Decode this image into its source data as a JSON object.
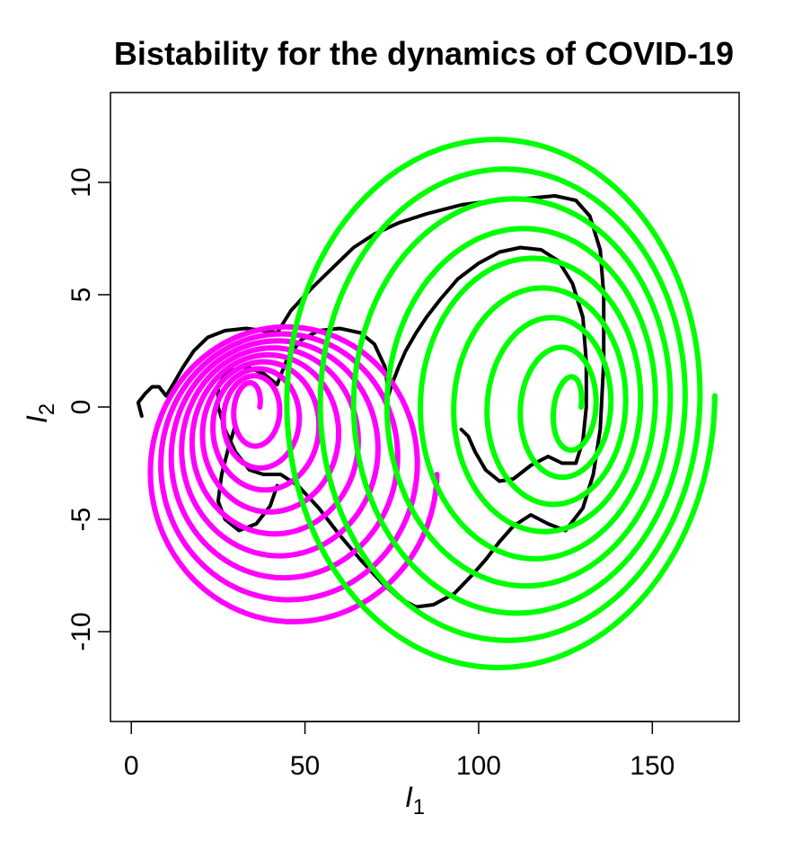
{
  "chart_data": {
    "type": "line",
    "title": "Bistability for the dynamics of COVID-19",
    "xlabel": {
      "symbol": "I",
      "subscript": "1"
    },
    "ylabel": {
      "symbol": "I",
      "subscript": "2"
    },
    "xlim": [
      -6,
      175
    ],
    "ylim": [
      -14,
      14
    ],
    "x_ticks": [
      0,
      50,
      100,
      150
    ],
    "y_ticks": [
      -10,
      -5,
      0,
      5,
      10
    ],
    "grid": false,
    "legend": "none",
    "series": [
      {
        "color": "#000000",
        "points": [
          [
            3,
            -0.4
          ],
          [
            2,
            0.2
          ],
          [
            4,
            0.6
          ],
          [
            6,
            0.9
          ],
          [
            8,
            0.9
          ],
          [
            10,
            0.5
          ],
          [
            12,
            1.0
          ],
          [
            15,
            1.8
          ],
          [
            18,
            2.5
          ],
          [
            22,
            3.1
          ],
          [
            27,
            3.4
          ],
          [
            33,
            3.5
          ],
          [
            38,
            3.4
          ],
          [
            42,
            3.3
          ],
          [
            46,
            4.3
          ],
          [
            52,
            5.3
          ],
          [
            58,
            6.2
          ],
          [
            64,
            7.1
          ],
          [
            70,
            7.7
          ],
          [
            77,
            8.2
          ],
          [
            85,
            8.6
          ],
          [
            95,
            9.0
          ],
          [
            105,
            9.2
          ],
          [
            115,
            9.3
          ],
          [
            122,
            9.4
          ],
          [
            128,
            9.2
          ],
          [
            132,
            8.5
          ],
          [
            135,
            7.0
          ],
          [
            136,
            5.0
          ],
          [
            136,
            2.0
          ],
          [
            135,
            -1.0
          ],
          [
            133,
            -3.0
          ],
          [
            130,
            -4.5
          ],
          [
            125,
            -5.5
          ],
          [
            120,
            -5.2
          ],
          [
            115,
            -4.8
          ],
          [
            110,
            -5.3
          ],
          [
            106,
            -6.0
          ],
          [
            102,
            -6.8
          ],
          [
            98,
            -7.5
          ],
          [
            93,
            -8.3
          ],
          [
            87,
            -8.8
          ],
          [
            82,
            -8.9
          ],
          [
            77,
            -8.5
          ],
          [
            72,
            -7.8
          ],
          [
            66,
            -6.8
          ],
          [
            60,
            -5.7
          ],
          [
            54,
            -4.5
          ],
          [
            48,
            -3.5
          ],
          [
            43,
            -3.0
          ],
          [
            38,
            -3.0
          ],
          [
            34,
            -2.8
          ],
          [
            30,
            -2.0
          ],
          [
            27,
            -1.0
          ],
          [
            25,
            0.0
          ],
          [
            25,
            1.0
          ],
          [
            28,
            1.6
          ],
          [
            33,
            1.8
          ],
          [
            38,
            1.5
          ],
          [
            42,
            1.0
          ],
          [
            45,
            2.2
          ],
          [
            49,
            3.0
          ],
          [
            54,
            3.4
          ],
          [
            60,
            3.5
          ],
          [
            66,
            3.3
          ],
          [
            70,
            2.8
          ],
          [
            73,
            1.8
          ],
          [
            74,
            0.7
          ],
          [
            74,
            0.5
          ],
          [
            75,
            1.0
          ],
          [
            77,
            1.8
          ],
          [
            79,
            2.5
          ],
          [
            82,
            3.3
          ],
          [
            85,
            4.0
          ],
          [
            89,
            4.8
          ],
          [
            94,
            5.7
          ],
          [
            100,
            6.4
          ],
          [
            106,
            6.9
          ],
          [
            112,
            7.1
          ],
          [
            118,
            7.0
          ],
          [
            123,
            6.5
          ],
          [
            127,
            5.5
          ],
          [
            130,
            4.0
          ],
          [
            131,
            2.0
          ],
          [
            131,
            0.0
          ],
          [
            130,
            -1.5
          ],
          [
            128,
            -2.5
          ],
          [
            124,
            -2.5
          ],
          [
            120,
            -2.2
          ],
          [
            115,
            -2.6
          ],
          [
            110,
            -3.2
          ],
          [
            106,
            -3.3
          ],
          [
            102,
            -2.8
          ],
          [
            99,
            -2.0
          ],
          [
            97,
            -1.3
          ],
          [
            95,
            -1.0
          ]
        ]
      },
      {
        "color": "#000000",
        "points": [
          [
            30,
            -0.8
          ],
          [
            28,
            -1.8
          ],
          [
            26,
            -3.0
          ],
          [
            25,
            -4.2
          ],
          [
            27,
            -5.0
          ],
          [
            31,
            -5.5
          ],
          [
            36,
            -5.2
          ],
          [
            40,
            -4.4
          ],
          [
            42,
            -3.5
          ]
        ]
      },
      {
        "color": "#ff00ff",
        "spiral": {
          "cx": 34,
          "cy": 0,
          "rx0": 3,
          "rx1": 42,
          "ry0": 1,
          "ry1": 6.8,
          "turns": 9,
          "drift_x": 12,
          "drift_y": -3.0
        }
      },
      {
        "color": "#00ff00",
        "spiral": {
          "cx": 128,
          "cy": 0,
          "rx0": 1.5,
          "rx1": 64,
          "ry0": 1,
          "ry1": 12.4,
          "turns": 9,
          "drift_x": -24,
          "drift_y": 0.5
        }
      }
    ]
  }
}
